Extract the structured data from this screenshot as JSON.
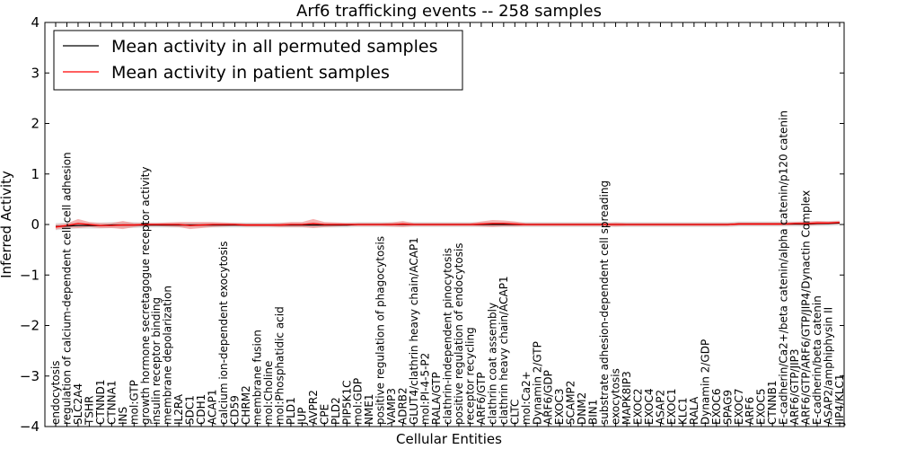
{
  "chart_data": {
    "type": "line",
    "title": "Arf6 trafficking events -- 258 samples",
    "xlabel": "Cellular Entities",
    "ylabel": "Inferred Activity",
    "ylim": [
      -4,
      4
    ],
    "yticks": [
      -4,
      -3,
      -2,
      -1,
      0,
      1,
      2,
      3,
      4
    ],
    "legend": {
      "position": "top-left"
    },
    "colors": {
      "permuted": "#000000",
      "patient": "#ff0000",
      "patient_band": "#f08080",
      "permuted_band": "#c8c8c8"
    },
    "categories": [
      "endocytosis",
      "regulation of calcium-dependent cell-cell adhesion",
      "SLC2A4",
      "TSHR",
      "CTNND1",
      "CTNNA1",
      "INS",
      "mol:GTP",
      "growth hormone secretagogue receptor activity",
      "insulin receptor binding",
      "membrane depolarization",
      "IL2RA",
      "SDC1",
      "CDH1",
      "ACAP1",
      "calcium ion-dependent exocytosis",
      "CD59",
      "CHRM2",
      "membrane fusion",
      "mol:Choline",
      "mol:Phosphatidic acid",
      "PLD1",
      "JUP",
      "AVPR2",
      "CPE",
      "PLD2",
      "PIP5K1C",
      "mol:GDP",
      "NME1",
      "positive regulation of phagocytosis",
      "VAMP3",
      "ADRB2",
      "GLUT4/clathrin heavy chain/ACAP1",
      "mol:PI-4-5-P2",
      "RALA/GTP",
      "clathrin-independent pinocytosis",
      "positive regulation of endocytosis",
      "receptor recycling",
      "ARF6/GTP",
      "clathrin coat assembly",
      "clathrin heavy chain/ACAP1",
      "CLTC",
      "mol:Ca2+",
      "Dynamin 2/GTP",
      "ARF6/GDP",
      "EXOC3",
      "SCAMP2",
      "DNM2",
      "BIN1",
      "substrate adhesion-dependent cell spreading",
      "exocytosis",
      "MAPK8IP3",
      "EXOC2",
      "EXOC4",
      "ASAP2",
      "EXOC1",
      "KLC1",
      "RALA",
      "Dynamin 2/GDP",
      "EXOC6",
      "SPAG9",
      "EXOC7",
      "ARF6",
      "EXOC5",
      "CTNNB1",
      "E-cadherin/Ca2+/beta catenin/alpha catenin/p120 catenin",
      "ARF6/GTP/JIP3",
      "ARF6/GTP/ARF6/GTP/JIP4/Dynactin Complex",
      "E-cadherin/beta catenin",
      "ASAP2/amphiphysin II",
      "JIP4/KLC1"
    ],
    "series": [
      {
        "name": "Mean activity in all permuted samples",
        "values": [
          -0.04,
          -0.03,
          -0.02,
          -0.02,
          -0.02,
          -0.01,
          -0.01,
          -0.01,
          -0.01,
          -0.01,
          -0.01,
          -0.01,
          -0.01,
          -0.01,
          -0.01,
          -0.01,
          -0.01,
          -0.01,
          -0.01,
          -0.01,
          -0.01,
          -0.01,
          -0.01,
          -0.01,
          -0.01,
          -0.01,
          -0.01,
          0.0,
          0.0,
          0.0,
          0.0,
          0.0,
          0.0,
          0.0,
          0.0,
          0.0,
          0.0,
          0.0,
          0.0,
          0.0,
          0.0,
          0.0,
          0.0,
          0.0,
          0.0,
          0.0,
          0.0,
          0.0,
          0.0,
          0.0,
          0.0,
          0.0,
          0.0,
          0.0,
          0.0,
          0.0,
          0.0,
          0.0,
          0.0,
          0.0,
          0.0,
          0.01,
          0.01,
          0.01,
          0.01,
          0.01,
          0.01,
          0.01,
          0.02,
          0.02,
          0.03
        ],
        "band": [
          0.07,
          0.07,
          0.06,
          0.06,
          0.06,
          0.06,
          0.06,
          0.06,
          0.05,
          0.05,
          0.05,
          0.05,
          0.05,
          0.05,
          0.05,
          0.05,
          0.05,
          0.05,
          0.05,
          0.05,
          0.05,
          0.05,
          0.05,
          0.05,
          0.05,
          0.05,
          0.05,
          0.05,
          0.05,
          0.05,
          0.05,
          0.05,
          0.05,
          0.05,
          0.05,
          0.05,
          0.05,
          0.05,
          0.05,
          0.05,
          0.05,
          0.05,
          0.05,
          0.05,
          0.05,
          0.05,
          0.05,
          0.05,
          0.05,
          0.05,
          0.05,
          0.05,
          0.05,
          0.05,
          0.05,
          0.05,
          0.05,
          0.05,
          0.05,
          0.05,
          0.05,
          0.05,
          0.05,
          0.05,
          0.05,
          0.05,
          0.05,
          0.05,
          0.05,
          0.05,
          0.05
        ]
      },
      {
        "name": "Mean activity in patient samples",
        "values": [
          -0.05,
          -0.02,
          0.02,
          0.0,
          -0.02,
          -0.02,
          -0.01,
          -0.01,
          0.0,
          0.0,
          0.0,
          0.0,
          -0.02,
          -0.01,
          0.0,
          0.0,
          0.0,
          -0.01,
          -0.01,
          -0.01,
          -0.01,
          0.0,
          0.0,
          0.02,
          0.0,
          0.0,
          0.0,
          0.0,
          0.0,
          0.0,
          0.0,
          0.01,
          0.0,
          0.0,
          0.0,
          0.0,
          0.0,
          0.0,
          0.01,
          0.02,
          0.02,
          0.01,
          0.0,
          0.0,
          0.0,
          0.0,
          0.0,
          0.0,
          0.0,
          0.0,
          0.0,
          0.0,
          0.0,
          0.0,
          0.0,
          0.0,
          0.0,
          0.0,
          0.0,
          0.0,
          0.0,
          0.01,
          0.01,
          0.01,
          0.01,
          0.01,
          0.02,
          0.02,
          0.03,
          0.03,
          0.04
        ],
        "band": [
          0.05,
          0.04,
          0.09,
          0.05,
          0.05,
          0.05,
          0.08,
          0.04,
          0.03,
          0.03,
          0.04,
          0.05,
          0.07,
          0.06,
          0.05,
          0.04,
          0.03,
          0.03,
          0.03,
          0.03,
          0.04,
          0.05,
          0.05,
          0.09,
          0.05,
          0.04,
          0.03,
          0.03,
          0.03,
          0.03,
          0.04,
          0.06,
          0.03,
          0.03,
          0.03,
          0.03,
          0.03,
          0.03,
          0.05,
          0.07,
          0.06,
          0.05,
          0.03,
          0.03,
          0.03,
          0.03,
          0.03,
          0.03,
          0.03,
          0.03,
          0.04,
          0.03,
          0.03,
          0.03,
          0.03,
          0.03,
          0.03,
          0.03,
          0.03,
          0.03,
          0.03,
          0.03,
          0.03,
          0.03,
          0.03,
          0.03,
          0.03,
          0.04,
          0.04,
          0.03,
          0.03
        ]
      }
    ]
  }
}
